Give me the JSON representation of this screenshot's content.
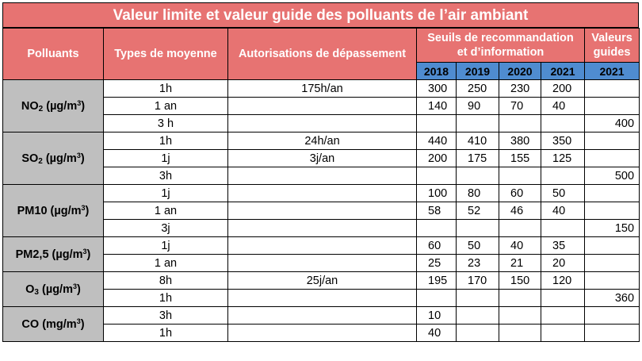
{
  "title": "Valeur limite et valeur guide des polluants de l’air ambiant",
  "headers": {
    "polluants": "Polluants",
    "types": "Types de moyenne",
    "autorisations": "Autorisations de dépassement",
    "seuils_line1": "Seuils de recommandation",
    "seuils_line2": "et d’information",
    "guides_line1": "Valeurs",
    "guides_line2": "guides",
    "years": [
      "2018",
      "2019",
      "2020",
      "2021"
    ],
    "guide_year": "2021"
  },
  "pollutants": [
    {
      "label_main": "NO",
      "label_sub": "2",
      "label_unit": " (µg/m",
      "label_sup": "3",
      "label_end": ")",
      "rows": [
        {
          "type": "1h",
          "auth": "175h/an",
          "seuils": [
            "300",
            "250",
            "230",
            "200"
          ],
          "guide": ""
        },
        {
          "type": "1 an",
          "auth": "",
          "seuils": [
            "140",
            "90",
            "70",
            "40"
          ],
          "guide": ""
        },
        {
          "type": "3 h",
          "auth": "",
          "seuils": [
            "",
            "",
            "",
            ""
          ],
          "guide": "400"
        }
      ]
    },
    {
      "label_main": "SO",
      "label_sub": "2",
      "label_unit": " (µg/m",
      "label_sup": "3",
      "label_end": ")",
      "rows": [
        {
          "type": "1h",
          "auth": "24h/an",
          "seuils": [
            "440",
            "410",
            "380",
            "350"
          ],
          "guide": ""
        },
        {
          "type": "1j",
          "auth": "3j/an",
          "seuils": [
            "200",
            "175",
            "155",
            "125"
          ],
          "guide": ""
        },
        {
          "type": "3h",
          "auth": "",
          "seuils": [
            "",
            "",
            "",
            ""
          ],
          "guide": "500"
        }
      ]
    },
    {
      "label_main": "PM10",
      "label_sub": "",
      "label_unit": " (µg/m",
      "label_sup": "3",
      "label_end": ")",
      "rows": [
        {
          "type": "1j",
          "auth": "",
          "seuils": [
            "100",
            "80",
            "60",
            "50"
          ],
          "guide": ""
        },
        {
          "type": "1 an",
          "auth": "",
          "seuils": [
            "58",
            "52",
            "46",
            "40"
          ],
          "guide": ""
        },
        {
          "type": "3j",
          "auth": "",
          "seuils": [
            "",
            "",
            "",
            ""
          ],
          "guide": "150"
        }
      ]
    },
    {
      "label_main": "PM2,5",
      "label_sub": "",
      "label_unit": " (µg/m",
      "label_sup": "3",
      "label_end": ")",
      "rows": [
        {
          "type": "1j",
          "auth": "",
          "seuils": [
            "60",
            "50",
            "40",
            "35"
          ],
          "guide": ""
        },
        {
          "type": "1 an",
          "auth": "",
          "seuils": [
            "25",
            "23",
            "21",
            "20"
          ],
          "guide": ""
        }
      ]
    },
    {
      "label_main": "O",
      "label_sub": "3",
      "label_unit": " (µg/m",
      "label_sup": "3",
      "label_end": ")",
      "rows": [
        {
          "type": "8h",
          "auth": "25j/an",
          "seuils": [
            "195",
            "170",
            "150",
            "120"
          ],
          "guide": ""
        },
        {
          "type": "1h",
          "auth": "",
          "seuils": [
            "",
            "",
            "",
            ""
          ],
          "guide": "360"
        }
      ]
    },
    {
      "label_main": "CO",
      "label_sub": "",
      "label_unit": " (mg/m",
      "label_sup": "3",
      "label_end": ")",
      "rows": [
        {
          "type": "3h",
          "auth": "",
          "seuils": [
            "10",
            "",
            "",
            ""
          ],
          "guide": ""
        },
        {
          "type": "1h",
          "auth": "",
          "seuils": [
            "40",
            "",
            "",
            ""
          ],
          "guide": ""
        }
      ]
    }
  ]
}
